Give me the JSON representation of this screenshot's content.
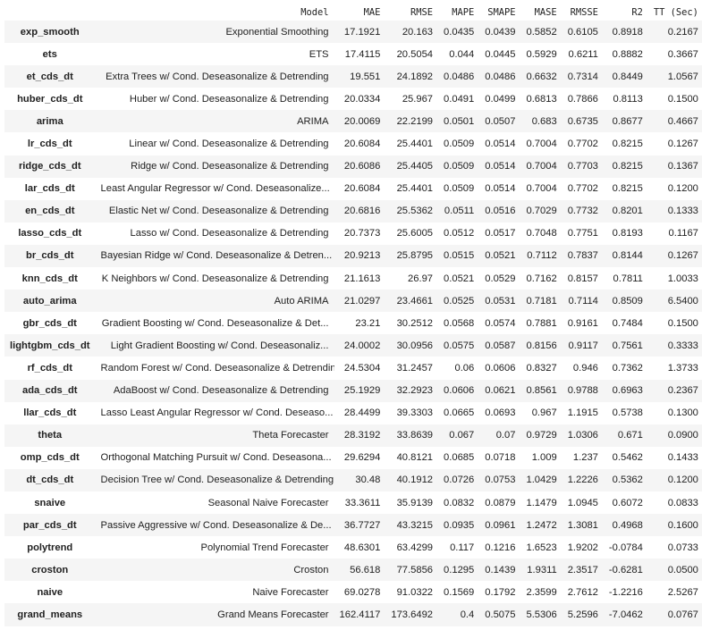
{
  "columns": [
    "Model",
    "MAE",
    "RMSE",
    "MAPE",
    "SMAPE",
    "MASE",
    "RMSSE",
    "R2",
    "TT (Sec)"
  ],
  "rows": [
    {
      "id": "exp_smooth",
      "cells": [
        "Exponential Smoothing",
        "17.1921",
        "20.163",
        "0.0435",
        "0.0439",
        "0.5852",
        "0.6105",
        "0.8918",
        "0.2167"
      ]
    },
    {
      "id": "ets",
      "cells": [
        "ETS",
        "17.4115",
        "20.5054",
        "0.044",
        "0.0445",
        "0.5929",
        "0.6211",
        "0.8882",
        "0.3667"
      ]
    },
    {
      "id": "et_cds_dt",
      "cells": [
        "Extra Trees w/ Cond. Deseasonalize & Detrending",
        "19.551",
        "24.1892",
        "0.0486",
        "0.0486",
        "0.6632",
        "0.7314",
        "0.8449",
        "1.0567"
      ]
    },
    {
      "id": "huber_cds_dt",
      "cells": [
        "Huber w/ Cond. Deseasonalize & Detrending",
        "20.0334",
        "25.967",
        "0.0491",
        "0.0499",
        "0.6813",
        "0.7866",
        "0.8113",
        "0.1500"
      ]
    },
    {
      "id": "arima",
      "cells": [
        "ARIMA",
        "20.0069",
        "22.2199",
        "0.0501",
        "0.0507",
        "0.683",
        "0.6735",
        "0.8677",
        "0.4667"
      ]
    },
    {
      "id": "lr_cds_dt",
      "cells": [
        "Linear w/ Cond. Deseasonalize & Detrending",
        "20.6084",
        "25.4401",
        "0.0509",
        "0.0514",
        "0.7004",
        "0.7702",
        "0.8215",
        "0.1267"
      ]
    },
    {
      "id": "ridge_cds_dt",
      "cells": [
        "Ridge w/ Cond. Deseasonalize & Detrending",
        "20.6086",
        "25.4405",
        "0.0509",
        "0.0514",
        "0.7004",
        "0.7703",
        "0.8215",
        "0.1367"
      ]
    },
    {
      "id": "lar_cds_dt",
      "cells": [
        "Least Angular Regressor w/ Cond. Deseasonalize...",
        "20.6084",
        "25.4401",
        "0.0509",
        "0.0514",
        "0.7004",
        "0.7702",
        "0.8215",
        "0.1200"
      ]
    },
    {
      "id": "en_cds_dt",
      "cells": [
        "Elastic Net w/ Cond. Deseasonalize & Detrending",
        "20.6816",
        "25.5362",
        "0.0511",
        "0.0516",
        "0.7029",
        "0.7732",
        "0.8201",
        "0.1333"
      ]
    },
    {
      "id": "lasso_cds_dt",
      "cells": [
        "Lasso w/ Cond. Deseasonalize & Detrending",
        "20.7373",
        "25.6005",
        "0.0512",
        "0.0517",
        "0.7048",
        "0.7751",
        "0.8193",
        "0.1167"
      ]
    },
    {
      "id": "br_cds_dt",
      "cells": [
        "Bayesian Ridge w/ Cond. Deseasonalize & Detren...",
        "20.9213",
        "25.8795",
        "0.0515",
        "0.0521",
        "0.7112",
        "0.7837",
        "0.8144",
        "0.1267"
      ]
    },
    {
      "id": "knn_cds_dt",
      "cells": [
        "K Neighbors w/ Cond. Deseasonalize & Detrending",
        "21.1613",
        "26.97",
        "0.0521",
        "0.0529",
        "0.7162",
        "0.8157",
        "0.7811",
        "1.0033"
      ]
    },
    {
      "id": "auto_arima",
      "cells": [
        "Auto ARIMA",
        "21.0297",
        "23.4661",
        "0.0525",
        "0.0531",
        "0.7181",
        "0.7114",
        "0.8509",
        "6.5400"
      ]
    },
    {
      "id": "gbr_cds_dt",
      "cells": [
        "Gradient Boosting w/ Cond. Deseasonalize & Det...",
        "23.21",
        "30.2512",
        "0.0568",
        "0.0574",
        "0.7881",
        "0.9161",
        "0.7484",
        "0.1500"
      ]
    },
    {
      "id": "lightgbm_cds_dt",
      "cells": [
        "Light Gradient Boosting w/ Cond. Deseasonaliz...",
        "24.0002",
        "30.0956",
        "0.0575",
        "0.0587",
        "0.8156",
        "0.9117",
        "0.7561",
        "0.3333"
      ]
    },
    {
      "id": "rf_cds_dt",
      "cells": [
        "Random Forest w/ Cond. Deseasonalize & Detrending",
        "24.5304",
        "31.2457",
        "0.06",
        "0.0606",
        "0.8327",
        "0.946",
        "0.7362",
        "1.3733"
      ]
    },
    {
      "id": "ada_cds_dt",
      "cells": [
        "AdaBoost w/ Cond. Deseasonalize & Detrending",
        "25.1929",
        "32.2923",
        "0.0606",
        "0.0621",
        "0.8561",
        "0.9788",
        "0.6963",
        "0.2367"
      ]
    },
    {
      "id": "llar_cds_dt",
      "cells": [
        "Lasso Least Angular Regressor w/ Cond. Deseaso...",
        "28.4499",
        "39.3303",
        "0.0665",
        "0.0693",
        "0.967",
        "1.1915",
        "0.5738",
        "0.1300"
      ]
    },
    {
      "id": "theta",
      "cells": [
        "Theta Forecaster",
        "28.3192",
        "33.8639",
        "0.067",
        "0.07",
        "0.9729",
        "1.0306",
        "0.671",
        "0.0900"
      ]
    },
    {
      "id": "omp_cds_dt",
      "cells": [
        "Orthogonal Matching Pursuit w/ Cond. Deseasona...",
        "29.6294",
        "40.8121",
        "0.0685",
        "0.0718",
        "1.009",
        "1.237",
        "0.5462",
        "0.1433"
      ]
    },
    {
      "id": "dt_cds_dt",
      "cells": [
        "Decision Tree w/ Cond. Deseasonalize & Detrending",
        "30.48",
        "40.1912",
        "0.0726",
        "0.0753",
        "1.0429",
        "1.2226",
        "0.5362",
        "0.1200"
      ]
    },
    {
      "id": "snaive",
      "cells": [
        "Seasonal Naive Forecaster",
        "33.3611",
        "35.9139",
        "0.0832",
        "0.0879",
        "1.1479",
        "1.0945",
        "0.6072",
        "0.0833"
      ]
    },
    {
      "id": "par_cds_dt",
      "cells": [
        "Passive Aggressive w/ Cond. Deseasonalize & De...",
        "36.7727",
        "43.3215",
        "0.0935",
        "0.0961",
        "1.2472",
        "1.3081",
        "0.4968",
        "0.1600"
      ]
    },
    {
      "id": "polytrend",
      "cells": [
        "Polynomial Trend Forecaster",
        "48.6301",
        "63.4299",
        "0.117",
        "0.1216",
        "1.6523",
        "1.9202",
        "-0.0784",
        "0.0733"
      ]
    },
    {
      "id": "croston",
      "cells": [
        "Croston",
        "56.618",
        "77.5856",
        "0.1295",
        "0.1439",
        "1.9311",
        "2.3517",
        "-0.6281",
        "0.0500"
      ]
    },
    {
      "id": "naive",
      "cells": [
        "Naive Forecaster",
        "69.0278",
        "91.0322",
        "0.1569",
        "0.1792",
        "2.3599",
        "2.7612",
        "-1.2216",
        "2.5267"
      ]
    },
    {
      "id": "grand_means",
      "cells": [
        "Grand Means Forecaster",
        "162.4117",
        "173.6492",
        "0.4",
        "0.5075",
        "5.5306",
        "5.2596",
        "-7.0462",
        "0.0767"
      ]
    }
  ]
}
